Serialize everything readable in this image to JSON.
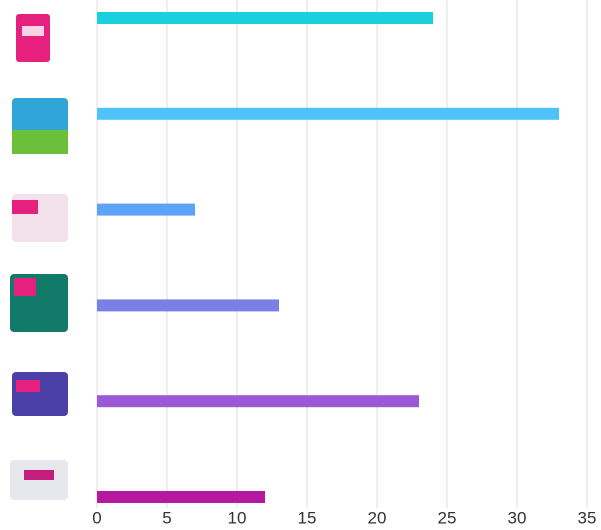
{
  "chart_data": {
    "type": "bar",
    "orientation": "horizontal",
    "categories": [
      null,
      null,
      null,
      null,
      null,
      null
    ],
    "values": [
      24,
      33,
      7,
      13,
      23,
      12
    ],
    "colors": [
      "#1ccfdc",
      "#4fc3f7",
      "#5ea3f5",
      "#7b80e6",
      "#9b59d6",
      "#b5199f"
    ],
    "xlim": [
      0,
      35
    ],
    "xticks": [
      0,
      5,
      10,
      15,
      20,
      25,
      30,
      35
    ],
    "grid": true
  }
}
